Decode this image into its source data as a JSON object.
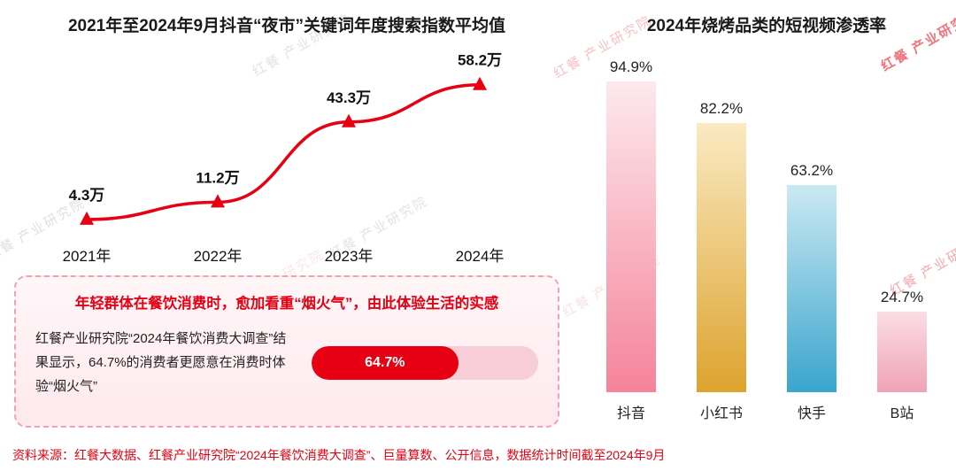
{
  "accent": "#e60012",
  "watermark": {
    "text": "红餐 产业研究院"
  },
  "chart_data": [
    {
      "type": "line",
      "title": "2021年至2024年9月抖音“夜市”关键词年度搜索指数平均值",
      "categories": [
        "2021年",
        "2022年",
        "2023年",
        "2024年"
      ],
      "values": [
        4.3,
        11.2,
        43.3,
        58.2
      ],
      "unit": "万",
      "point_labels": [
        "4.3万",
        "11.2万",
        "43.3万",
        "58.2万"
      ],
      "line_color": "#e60012",
      "ylim": [
        0,
        62
      ],
      "grid": false,
      "legend": "none"
    },
    {
      "type": "bar",
      "title": "2024年烧烤品类的短视频渗透率",
      "categories": [
        "抖音",
        "小红书",
        "快手",
        "B站"
      ],
      "values": [
        94.9,
        82.2,
        63.2,
        24.7
      ],
      "value_labels": [
        "94.9%",
        "82.2%",
        "63.2%",
        "24.7%"
      ],
      "ylim": [
        0,
        100
      ],
      "grid": false,
      "legend": "none",
      "bar_colors": [
        {
          "top": "#fde9ed",
          "bottom": "#f5839a"
        },
        {
          "top": "#faeac2",
          "bottom": "#dda32e"
        },
        {
          "top": "#cbe9f3",
          "bottom": "#3aa5cd"
        },
        {
          "top": "#fbdde4",
          "bottom": "#efa3b6"
        }
      ]
    }
  ],
  "callout": {
    "headline": "年轻群体在餐饮消费时，愈加看重“烟火气”，由此体验生活的实感",
    "body": "红餐产业研究院“2024年餐饮消费大调查”结果显示，64.7%的消费者更愿意在消费时体验“烟火气”",
    "progress": {
      "value": 64.7,
      "label": "64.7%"
    }
  },
  "footer": {
    "source": "资料来源：红餐大数据、红餐产业研究院“2024年餐饮消费大调查”、巨量算数、公开信息，数据统计时间截至2024年9月"
  }
}
